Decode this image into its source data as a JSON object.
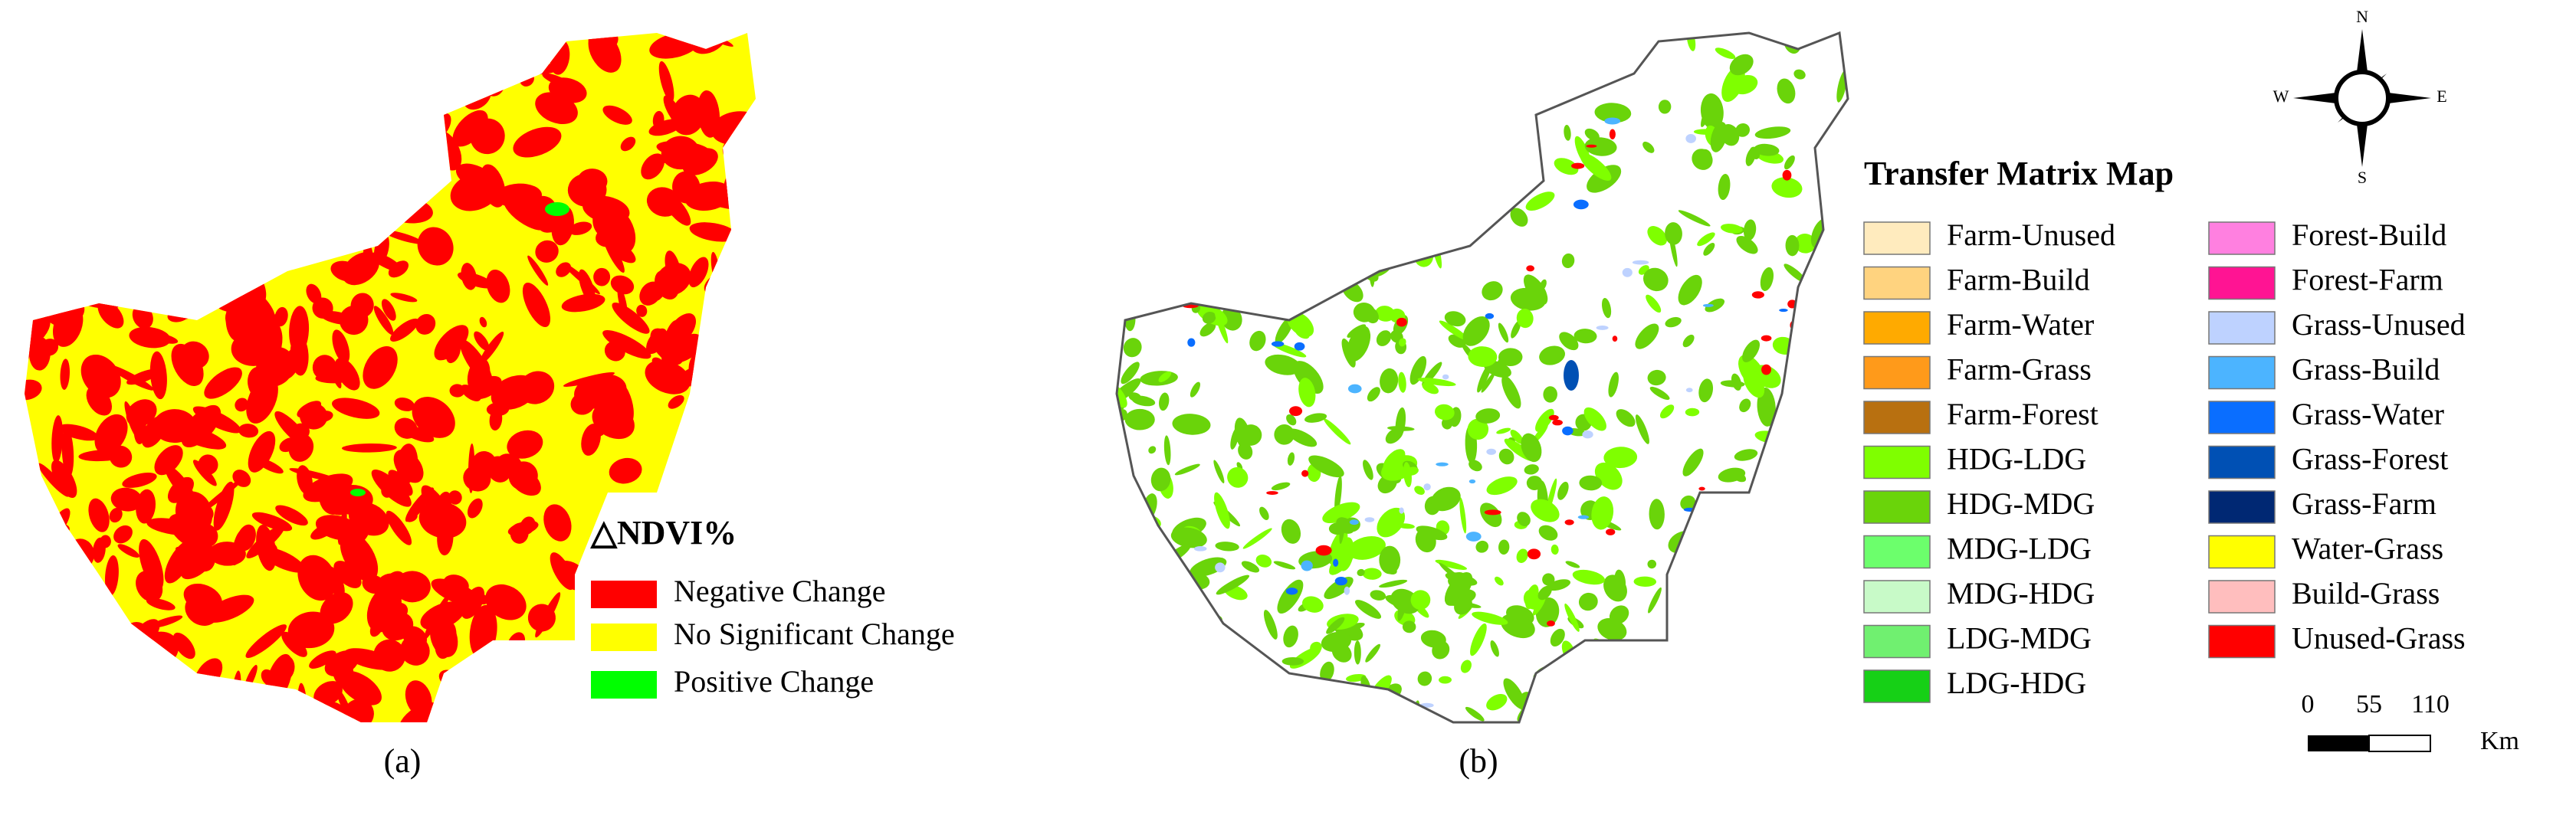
{
  "panel_a": {
    "label": "(a)",
    "legend": {
      "title": "△NDVI%",
      "items": [
        {
          "name": "Negative Change",
          "color": "#ff0000"
        },
        {
          "name": "No Significant Change",
          "color": "#ffff00"
        },
        {
          "name": "Positive Change",
          "color": "#00ff00"
        }
      ]
    }
  },
  "panel_b": {
    "label": "(b)",
    "legend": {
      "title": "Transfer Matrix Map",
      "items": [
        {
          "name": "Farm-Unused",
          "color": "#ffebbe"
        },
        {
          "name": "Farm-Build",
          "color": "#ffd37f"
        },
        {
          "name": "Farm-Water",
          "color": "#ffaa00"
        },
        {
          "name": "Farm-Grass",
          "color": "#ff9a1a"
        },
        {
          "name": "Farm-Forest",
          "color": "#b87010"
        },
        {
          "name": "HDG-LDG",
          "color": "#7fff00"
        },
        {
          "name": "HDG-MDG",
          "color": "#6ad40a"
        },
        {
          "name": "MDG-LDG",
          "color": "#6cff6c"
        },
        {
          "name": "MDG-HDG",
          "color": "#c8fac8"
        },
        {
          "name": "LDG-MDG",
          "color": "#70f070"
        },
        {
          "name": "LDG-HDG",
          "color": "#16d016"
        },
        {
          "name": "Forest-Build",
          "color": "#ff80e0"
        },
        {
          "name": "Forest-Farm",
          "color": "#ff1493"
        },
        {
          "name": "Grass-Unused",
          "color": "#bed2ff"
        },
        {
          "name": "Grass-Build",
          "color": "#4cb4ff"
        },
        {
          "name": "Grass-Water",
          "color": "#0a6eff"
        },
        {
          "name": "Grass-Forest",
          "color": "#0050b4"
        },
        {
          "name": "Grass-Farm",
          "color": "#002873"
        },
        {
          "name": "Water-Grass",
          "color": "#ffff00"
        },
        {
          "name": "Build-Grass",
          "color": "#ffbebe"
        },
        {
          "name": "Unused-Grass",
          "color": "#ff0000"
        }
      ]
    }
  },
  "compass": {
    "north": "N",
    "south": "S",
    "east": "E",
    "west": "W"
  },
  "scale_bar": {
    "ticks": [
      0,
      55,
      110
    ],
    "unit": "Km"
  }
}
